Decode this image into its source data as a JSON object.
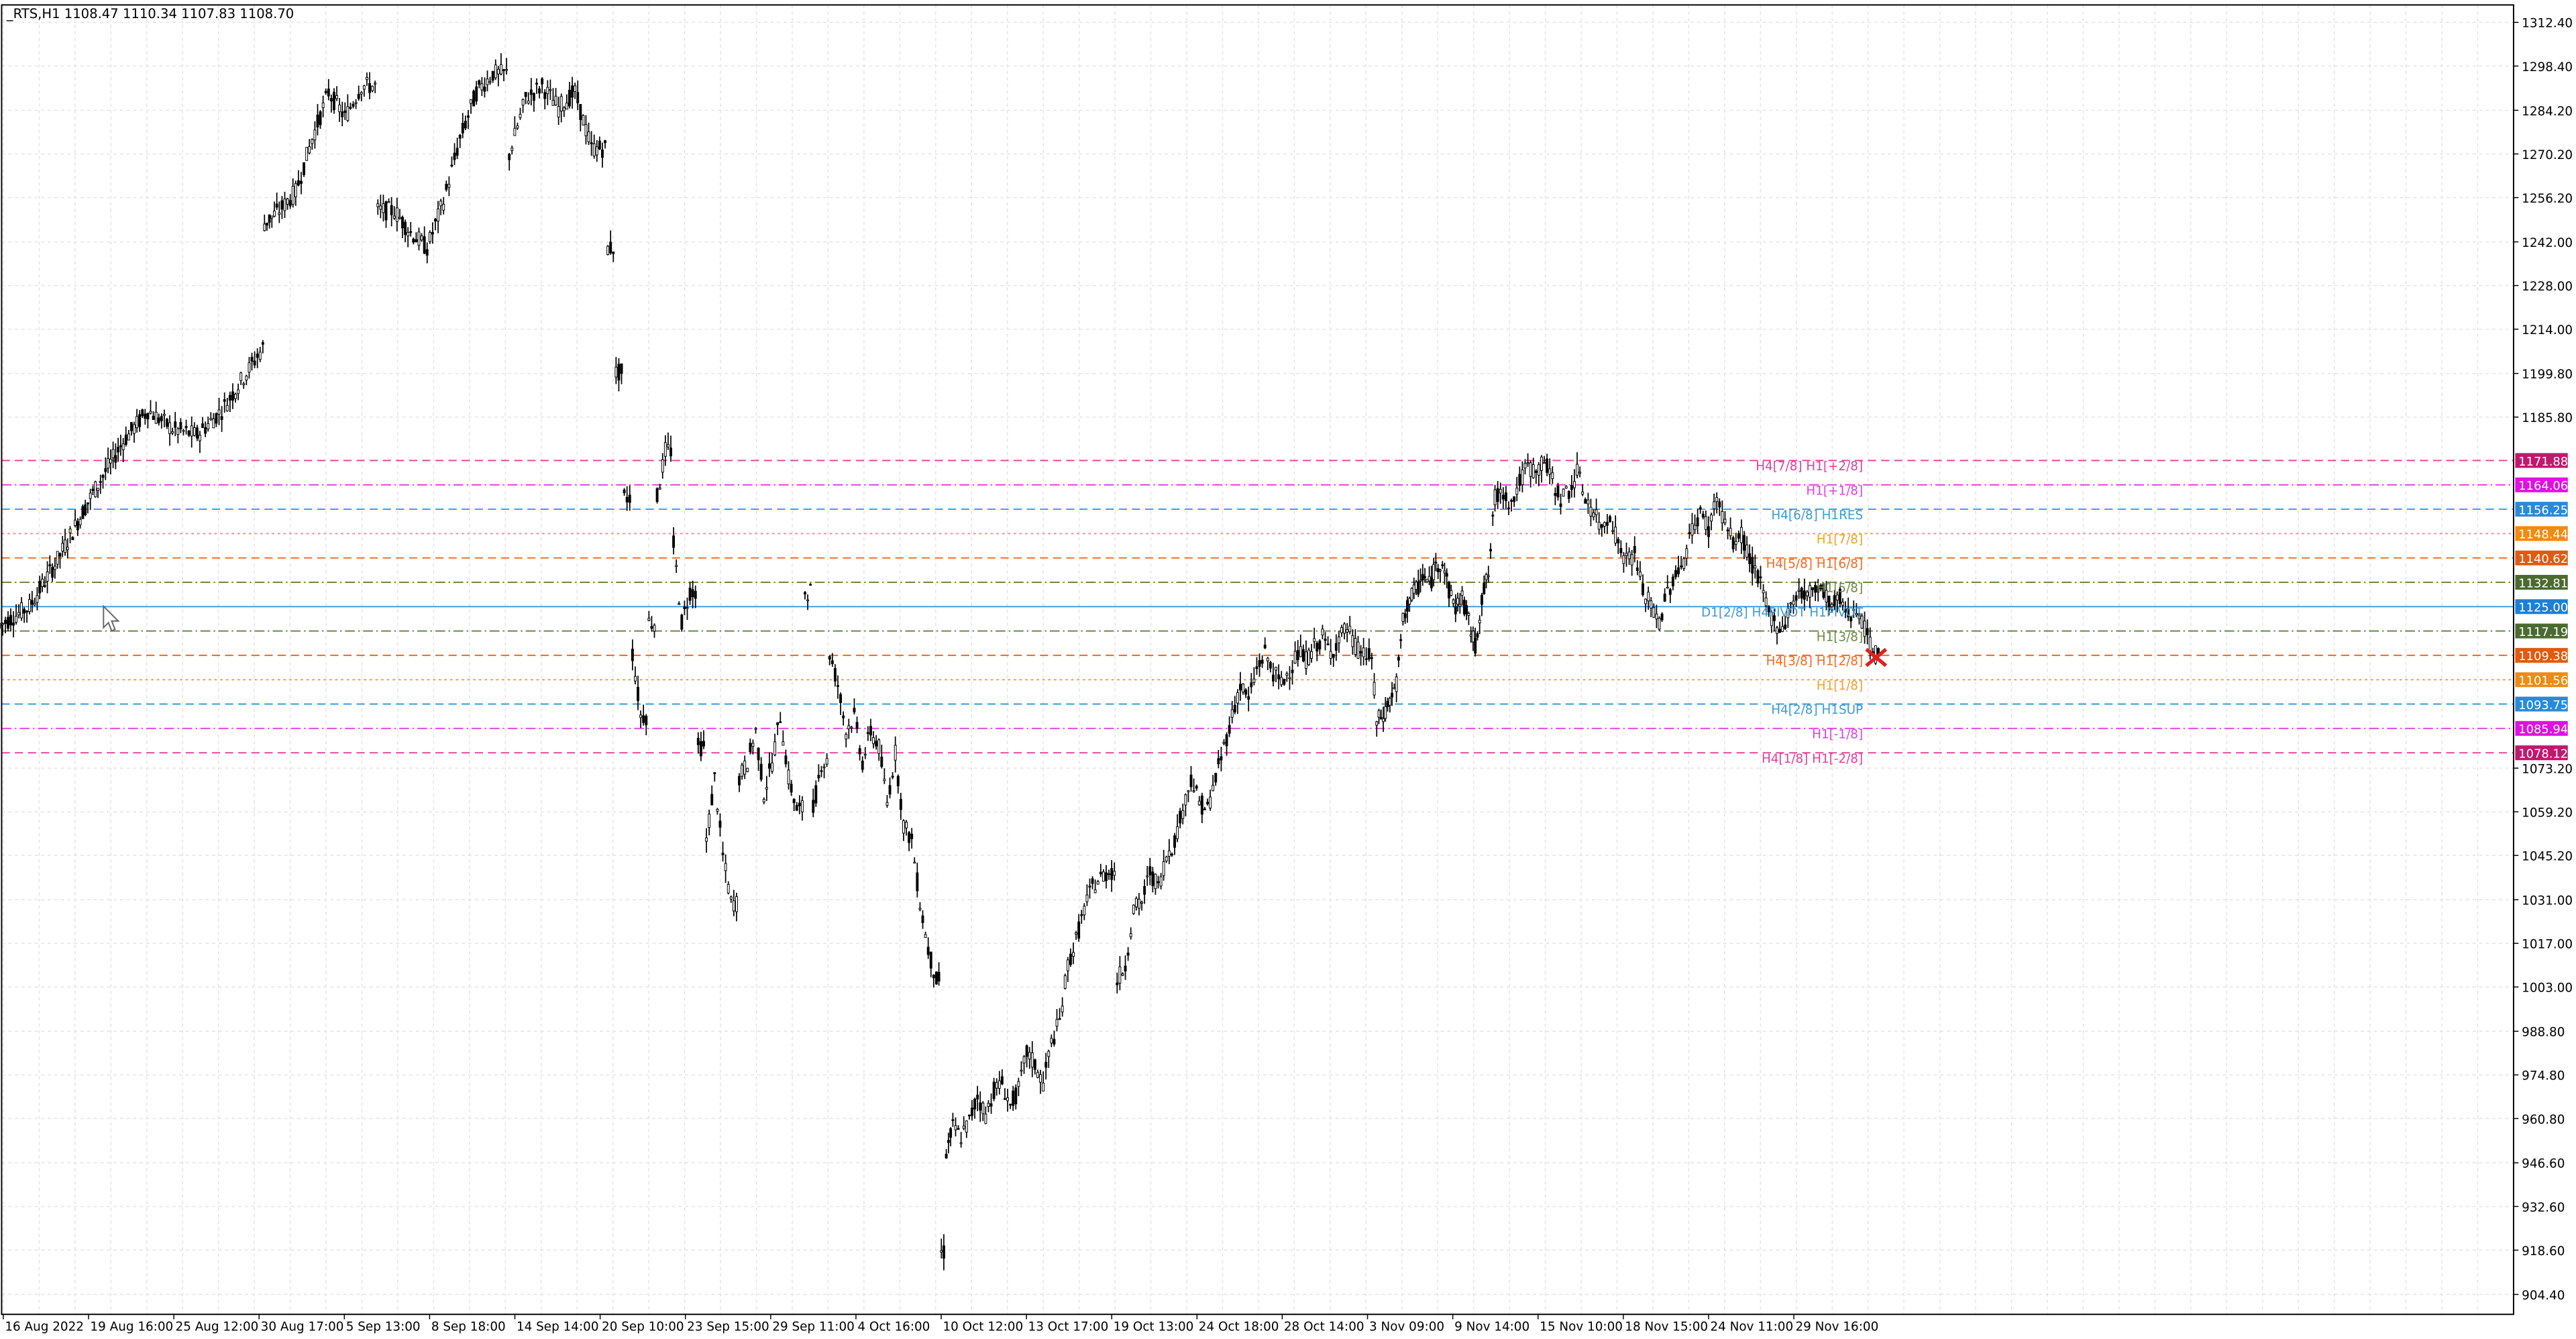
{
  "chart_data": {
    "type": "candlestick",
    "symbol_line": "_RTS,H1  1108.47 1110.34 1107.83 1108.70",
    "y_ticks": [
      "1312.40",
      "1298.40",
      "1284.20",
      "1270.20",
      "1256.20",
      "1242.00",
      "1228.00",
      "1214.00",
      "1199.80",
      "1185.80",
      "1073.20",
      "1059.20",
      "1045.20",
      "1031.00",
      "1017.00",
      "1003.00",
      "988.80",
      "974.80",
      "960.80",
      "946.60",
      "932.60",
      "918.60",
      "904.40"
    ],
    "y_tick_values": [
      1312.4,
      1298.4,
      1284.2,
      1270.2,
      1256.2,
      1242.0,
      1228.0,
      1214.0,
      1199.8,
      1185.8,
      1073.2,
      1059.2,
      1045.2,
      1031.0,
      1017.0,
      1003.0,
      988.8,
      974.8,
      960.8,
      946.6,
      932.6,
      918.6,
      904.4
    ],
    "ylim": [
      898.0,
      1318.0
    ],
    "x_ticks": [
      "16 Aug 2022",
      "19 Aug 16:00",
      "25 Aug 12:00",
      "30 Aug 17:00",
      "5 Sep 13:00",
      "8 Sep 18:00",
      "14 Sep 14:00",
      "20 Sep 10:00",
      "23 Sep 15:00",
      "29 Sep 11:00",
      "4 Oct 16:00",
      "10 Oct 12:00",
      "13 Oct 17:00",
      "19 Oct 13:00",
      "24 Oct 18:00",
      "28 Oct 14:00",
      "3 Nov 09:00",
      "9 Nov 14:00",
      "15 Nov 10:00",
      "18 Nov 15:00",
      "24 Nov 11:00",
      "29 Nov 16:00"
    ],
    "levels": [
      {
        "label": "H4[7/8] H1[+2/8]",
        "price": "1171.88",
        "value": 1171.88,
        "color": "#e0409a",
        "tag_color": "#c0186e",
        "style": "dash"
      },
      {
        "label": "H1[+1/8]",
        "price": "1164.06",
        "value": 1164.06,
        "color": "#e040e0",
        "tag_color": "#e010e0",
        "style": "dashdot"
      },
      {
        "label": "H4[6/8] H1RES",
        "price": "1156.25",
        "value": 1156.25,
        "color": "#3a9ad8",
        "tag_color": "#2a8ad8",
        "style": "dash"
      },
      {
        "label": "H1[7/8]",
        "price": "1148.44",
        "value": 1148.44,
        "color": "#f0a030",
        "tag_color": "#f08a10",
        "style": "dot"
      },
      {
        "label": "H4[5/8] H1[6/8]",
        "price": "1140.62",
        "value": 1140.62,
        "color": "#f06a20",
        "tag_color": "#e05a10",
        "style": "dash"
      },
      {
        "label": "H1[5/8]",
        "price": "1132.81",
        "value": 1132.81,
        "color": "#6a8a40",
        "tag_color": "#4a6a30",
        "style": "dashdot"
      },
      {
        "label": "D1[2/8] H4PIVOT H1PIVOT",
        "price": "1125.00",
        "value": 1125.0,
        "color": "#3a9ad8",
        "tag_color": "#1a80d8",
        "style": "solid"
      },
      {
        "label": "H1[3/8]",
        "price": "1117.19",
        "value": 1117.19,
        "color": "#6a8a40",
        "tag_color": "#4a6a30",
        "style": "dashdot"
      },
      {
        "label": "H4[3/8] H1[2/8]",
        "price": "1109.38",
        "value": 1109.38,
        "color": "#f06a20",
        "tag_color": "#e05a10",
        "style": "dash"
      },
      {
        "label": "H1[1/8]",
        "price": "1101.56",
        "value": 1101.56,
        "color": "#f0a030",
        "tag_color": "#f08a10",
        "style": "dot"
      },
      {
        "label": "H4[2/8] H1SUP",
        "price": "1093.75",
        "value": 1093.75,
        "color": "#3a9ad8",
        "tag_color": "#2a8ad8",
        "style": "dash"
      },
      {
        "label": "H1[-1/8]",
        "price": "1085.94",
        "value": 1085.94,
        "color": "#e040e0",
        "tag_color": "#e010e0",
        "style": "dashdot"
      },
      {
        "label": "H4[1/8] H1[-2/8]",
        "price": "1078.12",
        "value": 1078.12,
        "color": "#e0409a",
        "tag_color": "#c0186e",
        "style": "dash"
      }
    ],
    "current_price": 1108.7,
    "price_path": [
      [
        0,
        1119
      ],
      [
        18,
        1125
      ],
      [
        35,
        1140
      ],
      [
        55,
        1160
      ],
      [
        75,
        1178
      ],
      [
        90,
        1188
      ],
      [
        105,
        1182
      ],
      [
        120,
        1180
      ],
      [
        135,
        1188
      ],
      [
        150,
        1200
      ],
      [
        160,
        1208
      ],
      [
        161,
        1248
      ],
      [
        170,
        1252
      ],
      [
        180,
        1258
      ],
      [
        190,
        1275
      ],
      [
        200,
        1290
      ],
      [
        210,
        1282
      ],
      [
        220,
        1292
      ],
      [
        230,
        1252
      ],
      [
        240,
        1252
      ],
      [
        250,
        1245
      ],
      [
        260,
        1240
      ],
      [
        270,
        1255
      ],
      [
        280,
        1275
      ],
      [
        290,
        1290
      ],
      [
        300,
        1296
      ],
      [
        310,
        1270
      ],
      [
        320,
        1288
      ],
      [
        330,
        1292
      ],
      [
        340,
        1285
      ],
      [
        350,
        1290
      ],
      [
        360,
        1272
      ],
      [
        370,
        1240
      ],
      [
        375,
        1200
      ],
      [
        380,
        1160
      ],
      [
        385,
        1110
      ],
      [
        390,
        1090
      ],
      [
        395,
        1120
      ],
      [
        400,
        1160
      ],
      [
        405,
        1175
      ],
      [
        410,
        1145
      ],
      [
        415,
        1120
      ],
      [
        420,
        1130
      ],
      [
        425,
        1080
      ],
      [
        430,
        1050
      ],
      [
        435,
        1070
      ],
      [
        440,
        1045
      ],
      [
        445,
        1030
      ],
      [
        450,
        1070
      ],
      [
        455,
        1075
      ],
      [
        460,
        1085
      ],
      [
        465,
        1065
      ],
      [
        470,
        1075
      ],
      [
        475,
        1090
      ],
      [
        480,
        1070
      ],
      [
        485,
        1060
      ],
      [
        490,
        1130
      ],
      [
        495,
        1060
      ],
      [
        500,
        1075
      ],
      [
        505,
        1110
      ],
      [
        510,
        1100
      ],
      [
        515,
        1085
      ],
      [
        520,
        1090
      ],
      [
        525,
        1075
      ],
      [
        530,
        1085
      ],
      [
        535,
        1080
      ],
      [
        540,
        1062
      ],
      [
        545,
        1078
      ],
      [
        550,
        1055
      ],
      [
        555,
        1050
      ],
      [
        560,
        1030
      ],
      [
        565,
        1015
      ],
      [
        570,
        1005
      ],
      [
        573,
        918
      ],
      [
        576,
        950
      ],
      [
        580,
        958
      ],
      [
        585,
        955
      ],
      [
        590,
        960
      ],
      [
        595,
        968
      ],
      [
        600,
        962
      ],
      [
        605,
        970
      ],
      [
        610,
        972
      ],
      [
        615,
        965
      ],
      [
        620,
        970
      ],
      [
        625,
        982
      ],
      [
        630,
        978
      ],
      [
        635,
        972
      ],
      [
        640,
        985
      ],
      [
        645,
        992
      ],
      [
        650,
        1010
      ],
      [
        655,
        1018
      ],
      [
        660,
        1028
      ],
      [
        665,
        1035
      ],
      [
        670,
        1038
      ],
      [
        675,
        1040
      ],
      [
        680,
        1005
      ],
      [
        685,
        1010
      ],
      [
        690,
        1028
      ],
      [
        695,
        1030
      ],
      [
        700,
        1040
      ],
      [
        705,
        1035
      ],
      [
        710,
        1045
      ],
      [
        715,
        1050
      ],
      [
        720,
        1060
      ],
      [
        725,
        1070
      ],
      [
        730,
        1062
      ],
      [
        735,
        1060
      ],
      [
        740,
        1070
      ],
      [
        745,
        1080
      ],
      [
        750,
        1090
      ],
      [
        755,
        1100
      ],
      [
        760,
        1095
      ],
      [
        765,
        1105
      ],
      [
        770,
        1110
      ],
      [
        775,
        1104
      ],
      [
        780,
        1100
      ],
      [
        785,
        1105
      ],
      [
        790,
        1110
      ],
      [
        795,
        1108
      ],
      [
        800,
        1112
      ],
      [
        805,
        1115
      ],
      [
        810,
        1110
      ],
      [
        815,
        1115
      ],
      [
        820,
        1118
      ],
      [
        825,
        1112
      ],
      [
        830,
        1110
      ],
      [
        835,
        1108
      ],
      [
        838,
        1088
      ],
      [
        842,
        1090
      ],
      [
        846,
        1095
      ],
      [
        850,
        1100
      ],
      [
        854,
        1120
      ],
      [
        858,
        1128
      ],
      [
        862,
        1130
      ],
      [
        866,
        1135
      ],
      [
        870,
        1132
      ],
      [
        874,
        1138
      ],
      [
        878,
        1140
      ],
      [
        882,
        1130
      ],
      [
        886,
        1125
      ],
      [
        890,
        1128
      ],
      [
        894,
        1120
      ],
      [
        898,
        1112
      ],
      [
        902,
        1128
      ],
      [
        906,
        1135
      ],
      [
        910,
        1160
      ],
      [
        915,
        1162
      ],
      [
        920,
        1158
      ],
      [
        925,
        1165
      ],
      [
        930,
        1170
      ],
      [
        935,
        1168
      ],
      [
        940,
        1172
      ],
      [
        945,
        1165
      ],
      [
        950,
        1160
      ],
      [
        955,
        1162
      ],
      [
        960,
        1168
      ],
      [
        965,
        1160
      ],
      [
        970,
        1155
      ],
      [
        975,
        1150
      ],
      [
        980,
        1155
      ],
      [
        985,
        1145
      ],
      [
        990,
        1140
      ],
      [
        995,
        1142
      ],
      [
        1000,
        1130
      ],
      [
        1005,
        1125
      ],
      [
        1010,
        1120
      ],
      [
        1015,
        1130
      ],
      [
        1020,
        1135
      ],
      [
        1025,
        1140
      ],
      [
        1030,
        1150
      ],
      [
        1035,
        1155
      ],
      [
        1040,
        1150
      ],
      [
        1045,
        1160
      ],
      [
        1050,
        1152
      ],
      [
        1055,
        1145
      ],
      [
        1060,
        1148
      ],
      [
        1065,
        1140
      ],
      [
        1070,
        1135
      ],
      [
        1075,
        1125
      ],
      [
        1080,
        1120
      ],
      [
        1085,
        1118
      ],
      [
        1090,
        1125
      ],
      [
        1095,
        1130
      ],
      [
        1100,
        1128
      ],
      [
        1105,
        1132
      ],
      [
        1110,
        1130
      ],
      [
        1115,
        1125
      ],
      [
        1120,
        1128
      ],
      [
        1125,
        1122
      ],
      [
        1130,
        1125
      ],
      [
        1135,
        1118
      ],
      [
        1140,
        1110
      ],
      [
        1145,
        1108.7
      ]
    ]
  }
}
